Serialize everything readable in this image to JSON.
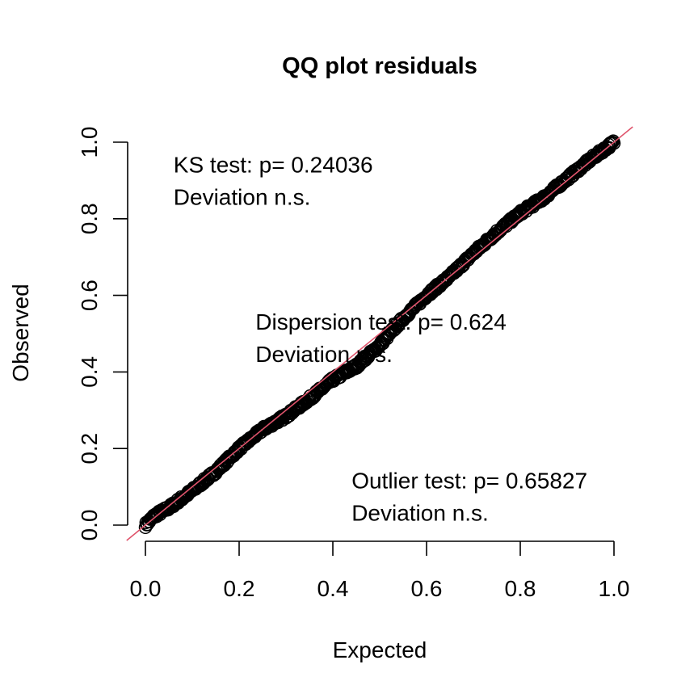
{
  "chart_data": {
    "type": "scatter",
    "title": "QQ plot residuals",
    "xlabel": "Expected",
    "ylabel": "Observed",
    "xlim": [
      0,
      1
    ],
    "ylim": [
      0,
      1
    ],
    "x_ticks": [
      "0.0",
      "0.2",
      "0.4",
      "0.6",
      "0.8",
      "1.0"
    ],
    "y_ticks": [
      "0.0",
      "0.2",
      "0.4",
      "0.6",
      "0.8",
      "1.0"
    ],
    "grid": false,
    "reference_line": {
      "slope": 1,
      "intercept": 0,
      "color": "#DF536B"
    },
    "point_color": "#000000",
    "series": [
      {
        "x": [
          0.0,
          0.02,
          0.05,
          0.1,
          0.15,
          0.2,
          0.25,
          0.3,
          0.35,
          0.4,
          0.45,
          0.5,
          0.55,
          0.6,
          0.65,
          0.7,
          0.75,
          0.8,
          0.85,
          0.9,
          0.95,
          1.0
        ],
        "y": [
          0.0,
          0.025,
          0.045,
          0.09,
          0.14,
          0.2,
          0.25,
          0.285,
          0.33,
          0.38,
          0.415,
          0.47,
          0.54,
          0.6,
          0.65,
          0.71,
          0.765,
          0.815,
          0.855,
          0.905,
          0.955,
          1.0
        ]
      }
    ],
    "annotations": [
      {
        "lines": [
          "KS test: p= 0.24036",
          "Deviation  n.s."
        ],
        "x": 0.06,
        "y": 0.94
      },
      {
        "lines": [
          "Dispersion test: p= 0.624",
          "Deviation  n.s."
        ],
        "x": 0.235,
        "y": 0.53
      },
      {
        "lines": [
          "Outlier test: p= 0.65827",
          "Deviation  n.s."
        ],
        "x": 0.44,
        "y": 0.115
      }
    ]
  }
}
